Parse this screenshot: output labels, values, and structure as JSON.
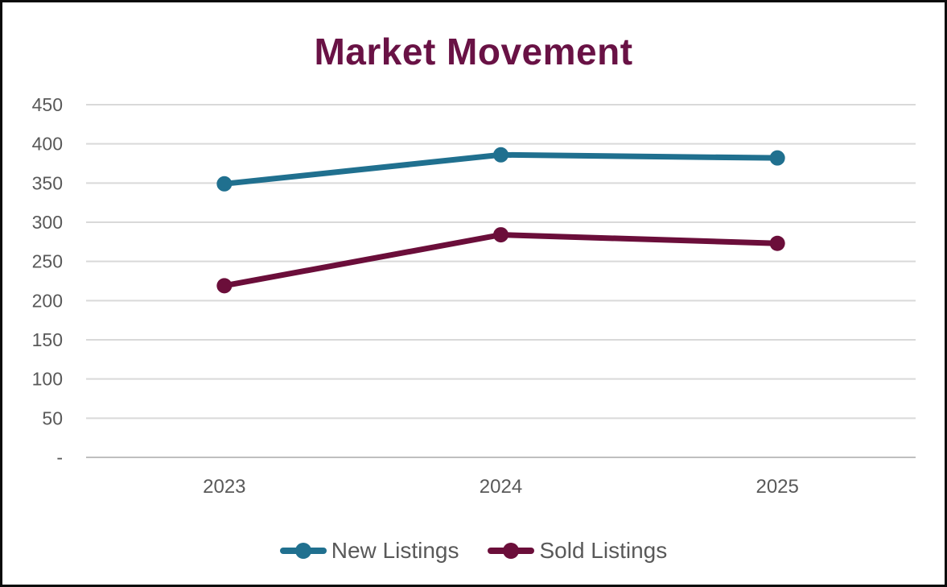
{
  "title": "Market Movement",
  "colors": {
    "title_text": "#691245",
    "axis_text": "#595959",
    "gridline": "#d9d9d9",
    "axis_line": "#bfbfbf",
    "background": "#ffffff",
    "frame_border": "#0b0b0b",
    "series_new_listings": "#20708f",
    "series_sold_listings": "#6b0e3a"
  },
  "chart_data": {
    "type": "line",
    "title": "Market Movement",
    "categories": [
      "2023",
      "2024",
      "2025"
    ],
    "series": [
      {
        "name": "New Listings",
        "color": "#20708f",
        "values": [
          349,
          386,
          382
        ]
      },
      {
        "name": "Sold Listings",
        "color": "#6b0e3a",
        "values": [
          219,
          284,
          273
        ]
      }
    ],
    "xlabel": "",
    "ylabel": "",
    "ylim": [
      0,
      450
    ],
    "ytick_step": 50,
    "ytick_labels": [
      "-",
      "50",
      "100",
      "150",
      "200",
      "250",
      "300",
      "350",
      "400",
      "450"
    ],
    "grid": true,
    "legend_position": "bottom",
    "marker": "circle"
  }
}
